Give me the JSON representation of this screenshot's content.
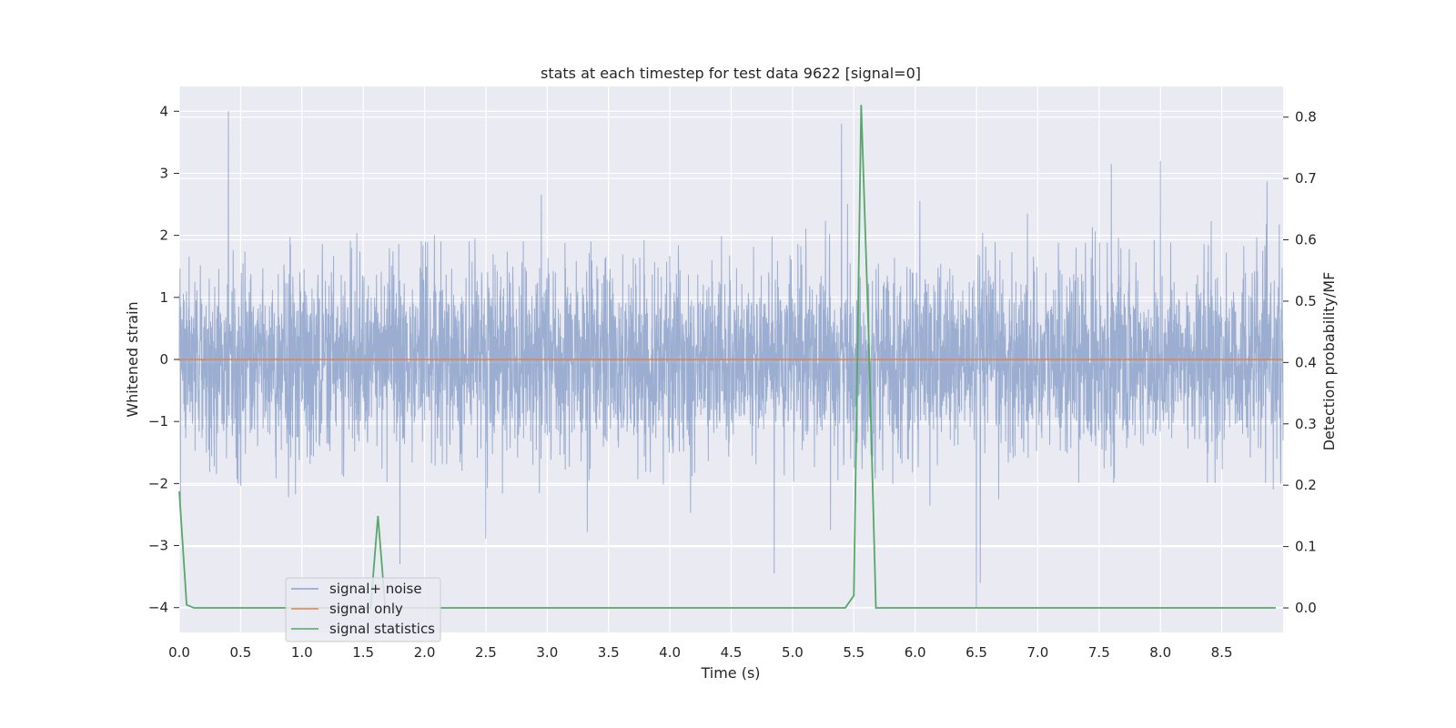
{
  "chart_data": {
    "type": "line",
    "title": "stats at each timestep for test data 9622 [signal=0]",
    "xlabel": "Time (s)",
    "ylabel": "Whitened strain",
    "y2label": "Detection probability/MF",
    "xlim": [
      0,
      9.0
    ],
    "ylim": [
      -4.4,
      4.4
    ],
    "y2lim": [
      -0.04,
      0.85
    ],
    "xticks": [
      "0.0",
      "0.5",
      "1.0",
      "1.5",
      "2.0",
      "2.5",
      "3.0",
      "3.5",
      "4.0",
      "4.5",
      "5.0",
      "5.5",
      "6.0",
      "6.5",
      "7.0",
      "7.5",
      "8.0",
      "8.5"
    ],
    "yticks": [
      "4",
      "3",
      "2",
      "1",
      "0",
      "−1",
      "−2",
      "−3",
      "−4"
    ],
    "y2ticks": [
      "0.8",
      "0.7",
      "0.6",
      "0.5",
      "0.4",
      "0.3",
      "0.2",
      "0.1",
      "0.0"
    ],
    "grid": true,
    "legend_position": "lower-left",
    "series": [
      {
        "name": "signal+ noise",
        "axis": "left",
        "color": "#4c72b0",
        "description_of_values": "dense whitened strain noise, mostly within ±2",
        "sample_rate_hz": 2048,
        "noise_std": 0.75,
        "extremes": [
          {
            "x": 0.4,
            "y": 4.0
          },
          {
            "x": 5.4,
            "y": 3.8
          },
          {
            "x": 8.0,
            "y": 3.2
          },
          {
            "x": 7.6,
            "y": 3.15
          },
          {
            "x": 6.5,
            "y": -4.0
          },
          {
            "x": 4.85,
            "y": -3.45
          },
          {
            "x": 6.53,
            "y": -3.6
          },
          {
            "x": 1.8,
            "y": -3.3
          }
        ]
      },
      {
        "name": "signal only",
        "axis": "left",
        "color": "#dd8452",
        "x": [
          0,
          9.0
        ],
        "y": [
          0,
          0
        ]
      },
      {
        "name": "signal statistics",
        "axis": "right",
        "color": "#55a868",
        "x": [
          0.0,
          0.06,
          0.12,
          1.5,
          1.56,
          1.62,
          1.68,
          1.74,
          5.43,
          5.5,
          5.56,
          5.62,
          5.68,
          8.94
        ],
        "y": [
          0.19,
          0.005,
          0.0,
          0.0,
          0.0,
          0.15,
          0.0,
          0.0,
          0.0,
          0.02,
          0.82,
          0.45,
          0.0,
          0.0
        ]
      }
    ]
  }
}
